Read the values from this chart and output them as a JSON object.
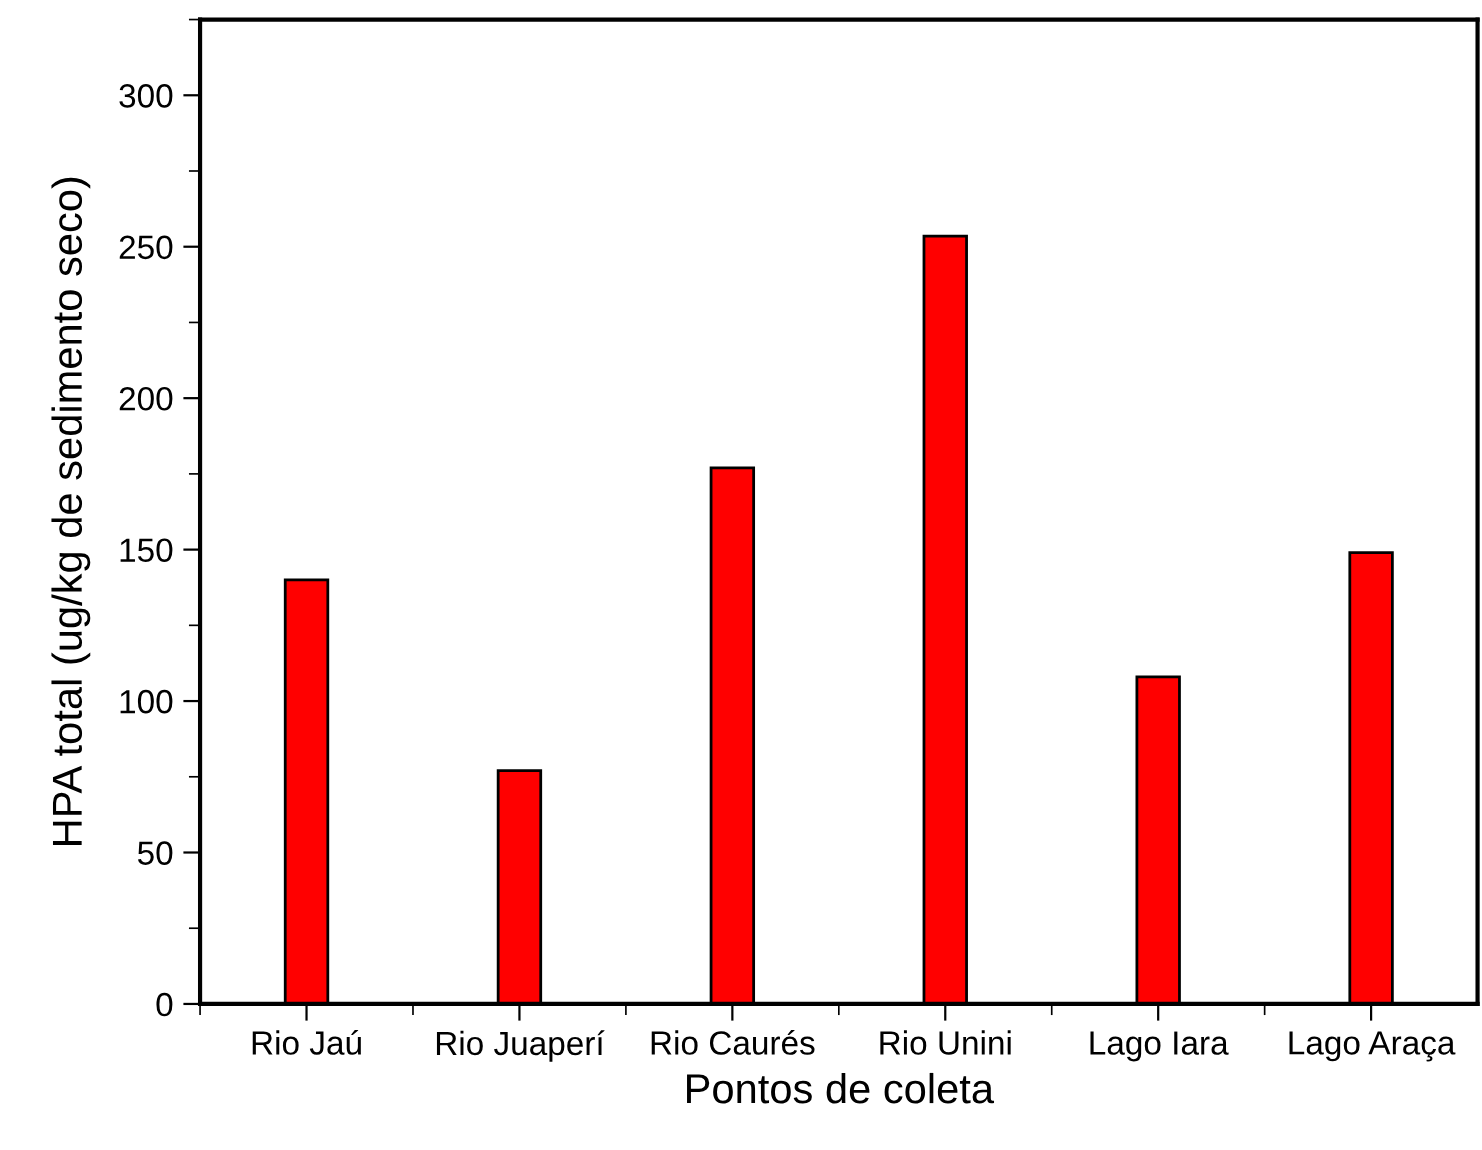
{
  "chart_data": {
    "type": "bar",
    "xlabel": "Pontos de coleta",
    "ylabel": "HPA total (ug/kg de sedimento seco)",
    "categories": [
      "Rio Jaú",
      "Rio Juaperí",
      "Rio Caurés",
      "Rio Unini",
      "Lago Iara",
      "Lago Araça"
    ],
    "values": [
      140,
      77,
      177,
      253.5,
      108,
      149
    ],
    "color": "#ff0000",
    "ylim": [
      0,
      325
    ],
    "yticks": [
      0,
      50,
      100,
      150,
      200,
      250,
      300
    ],
    "grid": false
  }
}
